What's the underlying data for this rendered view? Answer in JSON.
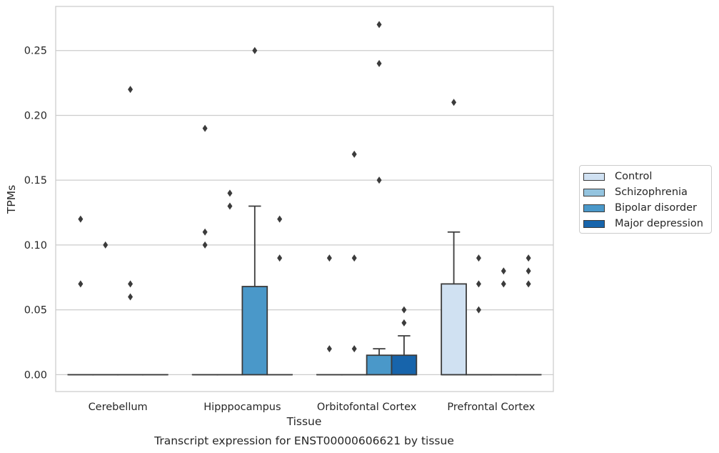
{
  "chart_data": {
    "type": "box",
    "title": "Transcript expression for ENST00000606621 by tissue",
    "xlabel": "Tissue",
    "ylabel": "TPMs",
    "ylim": [
      -0.013,
      0.284
    ],
    "yticks": [
      0.0,
      0.05,
      0.1,
      0.15,
      0.2,
      0.25
    ],
    "ytick_labels": [
      "0.00",
      "0.05",
      "0.10",
      "0.15",
      "0.20",
      "0.25"
    ],
    "grid": true,
    "legend_position": "right",
    "categories": [
      "Cerebellum",
      "Hipppocampus",
      "Orbitofontal Cortex",
      "Prefrontal Cortex"
    ],
    "series": [
      {
        "name": "Control",
        "color": "#d0e1f2",
        "boxes": [
          {
            "q1": 0,
            "median": 0,
            "q3": 0,
            "whisker_low": 0,
            "whisker_high": 0,
            "outliers": [
              0.12,
              0.07
            ]
          },
          {
            "q1": 0,
            "median": 0,
            "q3": 0,
            "whisker_low": 0,
            "whisker_high": 0,
            "outliers": [
              0.19,
              0.11,
              0.1
            ]
          },
          {
            "q1": 0,
            "median": 0,
            "q3": 0,
            "whisker_low": 0,
            "whisker_high": 0,
            "outliers": [
              0.09,
              0.02
            ]
          },
          {
            "q1": 0,
            "median": 0,
            "q3": 0.07,
            "whisker_low": 0,
            "whisker_high": 0.11,
            "outliers": [
              0.21
            ]
          }
        ]
      },
      {
        "name": "Schizophrenia",
        "color": "#94c4df",
        "boxes": [
          {
            "q1": 0,
            "median": 0,
            "q3": 0,
            "whisker_low": 0,
            "whisker_high": 0,
            "outliers": [
              0.1
            ]
          },
          {
            "q1": 0,
            "median": 0,
            "q3": 0,
            "whisker_low": 0,
            "whisker_high": 0,
            "outliers": [
              0.14,
              0.13
            ]
          },
          {
            "q1": 0,
            "median": 0,
            "q3": 0,
            "whisker_low": 0,
            "whisker_high": 0,
            "outliers": [
              0.17,
              0.09,
              0.02
            ]
          },
          {
            "q1": 0,
            "median": 0,
            "q3": 0,
            "whisker_low": 0,
            "whisker_high": 0,
            "outliers": [
              0.09,
              0.07,
              0.05
            ]
          }
        ]
      },
      {
        "name": "Bipolar disorder",
        "color": "#4a98c9",
        "boxes": [
          {
            "q1": 0,
            "median": 0,
            "q3": 0,
            "whisker_low": 0,
            "whisker_high": 0,
            "outliers": [
              0.22,
              0.07,
              0.06
            ]
          },
          {
            "q1": 0,
            "median": 0,
            "q3": 0.068,
            "whisker_low": 0,
            "whisker_high": 0.13,
            "outliers": [
              0.25
            ]
          },
          {
            "q1": 0,
            "median": 0,
            "q3": 0.015,
            "whisker_low": 0,
            "whisker_high": 0.02,
            "outliers": [
              0.27,
              0.24,
              0.15
            ]
          },
          {
            "q1": 0,
            "median": 0,
            "q3": 0,
            "whisker_low": 0,
            "whisker_high": 0,
            "outliers": [
              0.08,
              0.07
            ]
          }
        ]
      },
      {
        "name": "Major depression",
        "color": "#1764ab",
        "boxes": [
          {
            "q1": 0,
            "median": 0,
            "q3": 0,
            "whisker_low": 0,
            "whisker_high": 0,
            "outliers": []
          },
          {
            "q1": 0,
            "median": 0,
            "q3": 0,
            "whisker_low": 0,
            "whisker_high": 0,
            "outliers": [
              0.12,
              0.09
            ]
          },
          {
            "q1": 0,
            "median": 0,
            "q3": 0.015,
            "whisker_low": 0,
            "whisker_high": 0.03,
            "outliers": [
              0.05,
              0.04
            ]
          },
          {
            "q1": 0,
            "median": 0,
            "q3": 0,
            "whisker_low": 0,
            "whisker_high": 0,
            "outliers": [
              0.09,
              0.08,
              0.07
            ]
          }
        ]
      }
    ]
  }
}
